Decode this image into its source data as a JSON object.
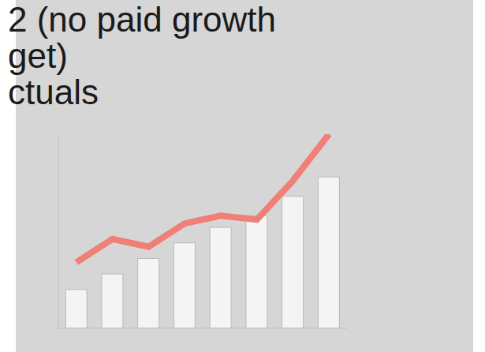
{
  "slide_text": [
    "2 (no paid growth",
    "get)",
    "ctuals"
  ],
  "chart_data": {
    "type": "bar",
    "categories": [
      null,
      null,
      null,
      null,
      null,
      null,
      null,
      null
    ],
    "series": [
      {
        "type": "bar",
        "color": "#f4f4f4",
        "values": [
          20,
          28,
          36,
          44,
          52,
          58,
          68,
          78
        ]
      },
      {
        "type": "line",
        "color": "#ef7f77",
        "values": [
          34,
          46,
          42,
          54,
          58,
          56,
          76,
          100
        ]
      }
    ],
    "ylim": [
      0,
      100
    ],
    "tick_labels": false
  }
}
